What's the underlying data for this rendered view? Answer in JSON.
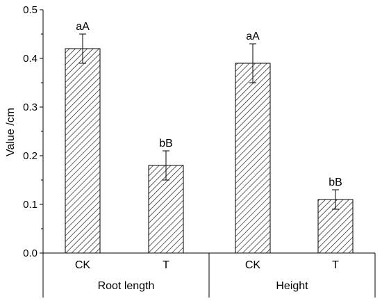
{
  "chart_data": {
    "type": "bar",
    "title": "",
    "ylabel": "Value /cm",
    "xlabel": "",
    "ylim": [
      0,
      0.5
    ],
    "yticks": [
      0.0,
      0.1,
      0.2,
      0.3,
      0.4,
      0.5
    ],
    "ytick_labels": [
      "0.0",
      "0.1",
      "0.2",
      "0.3",
      "0.4",
      "0.5"
    ],
    "grid": false,
    "bar_fill": "diagonal-hatch",
    "bar_color": "#000000",
    "groups": [
      {
        "label": "Root length",
        "bars": [
          {
            "category": "CK",
            "value": 0.42,
            "error": 0.03,
            "annotation": "aA"
          },
          {
            "category": "T",
            "value": 0.18,
            "error": 0.03,
            "annotation": "bB"
          }
        ]
      },
      {
        "label": "Height",
        "bars": [
          {
            "category": "CK",
            "value": 0.39,
            "error": 0.04,
            "annotation": "aA"
          },
          {
            "category": "T",
            "value": 0.11,
            "error": 0.02,
            "annotation": "bB"
          }
        ]
      }
    ]
  }
}
